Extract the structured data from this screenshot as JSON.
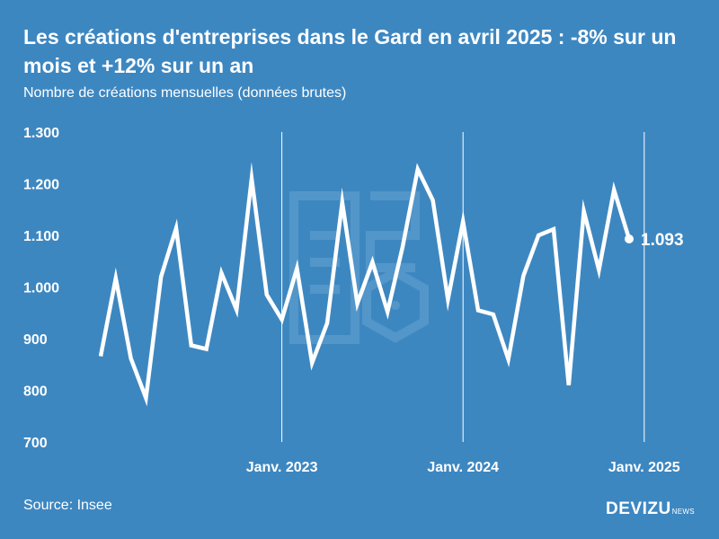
{
  "header": {
    "title": "Les créations d'entreprises dans le Gard en avril 2025 : -8% sur un mois et +12% sur un an",
    "subtitle": "Nombre de créations mensuelles (données brutes)"
  },
  "footer": {
    "source": "Source: Insee",
    "brand": "DEVIZU",
    "brand_suffix": "NEWS"
  },
  "colors": {
    "background": "#3d87c1",
    "line": "#ffffff",
    "watermark": "#5b9bcc"
  },
  "chart_data": {
    "type": "line",
    "title": "Les créations d'entreprises dans le Gard en avril 2025 : -8% sur un mois et +12% sur un an",
    "subtitle": "Nombre de créations mensuelles (données brutes)",
    "xlabel": "",
    "ylabel": "",
    "ylim": [
      700,
      1300
    ],
    "y_ticks": [
      {
        "value": 1300,
        "label": "1.300"
      },
      {
        "value": 1200,
        "label": "1.200"
      },
      {
        "value": 1100,
        "label": "1.100"
      },
      {
        "value": 1000,
        "label": "1.000"
      },
      {
        "value": 900,
        "label": "900"
      },
      {
        "value": 800,
        "label": "800"
      },
      {
        "value": 700,
        "label": "700"
      }
    ],
    "x_ticks": [
      {
        "x": "2023-01",
        "label": "Janv. 2023"
      },
      {
        "x": "2024-01",
        "label": "Janv. 2024"
      },
      {
        "x": "2025-01",
        "label": "Janv. 2025"
      }
    ],
    "grid": "vertical lines at each January",
    "legend": "none",
    "series": [
      {
        "x": [
          "2022-01",
          "2022-02",
          "2022-03",
          "2022-04",
          "2022-05",
          "2022-06",
          "2022-07",
          "2022-08",
          "2022-09",
          "2022-10",
          "2022-11",
          "2022-12",
          "2023-01",
          "2023-02",
          "2023-03",
          "2023-04",
          "2023-05",
          "2023-06",
          "2023-07",
          "2023-08",
          "2023-09",
          "2023-10",
          "2023-11",
          "2023-12",
          "2024-01",
          "2024-02",
          "2024-03",
          "2024-04",
          "2024-05",
          "2024-06",
          "2024-07",
          "2024-08",
          "2024-09",
          "2024-10",
          "2024-11",
          "2024-12",
          "2025-01",
          "2025-02",
          "2025-03",
          "2025-04"
        ],
        "values": [
          866,
          1017,
          862,
          785,
          1020,
          1114,
          887,
          880,
          1027,
          956,
          1210,
          985,
          937,
          1036,
          853,
          930,
          1164,
          968,
          1048,
          952,
          1078,
          1228,
          1168,
          976,
          1127,
          955,
          947,
          860,
          1022,
          1100,
          1112,
          810,
          1147,
          1033,
          1188,
          1093,
          null,
          null,
          null,
          null
        ],
        "last_value": 1093,
        "last_label": "1.093"
      }
    ]
  }
}
